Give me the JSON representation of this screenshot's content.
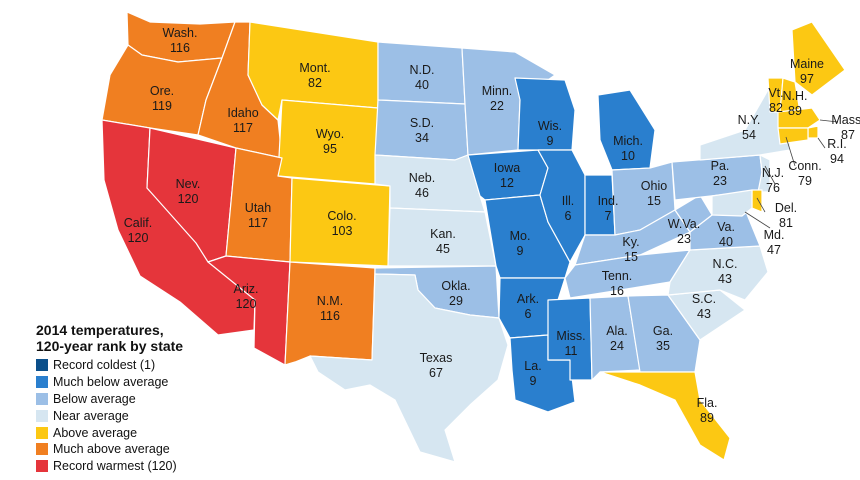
{
  "legend": {
    "title_line1": "2014 temperatures,",
    "title_line2": "120-year rank by state",
    "categories": [
      {
        "label": "Record coldest (1)",
        "color": "#0b4f8a"
      },
      {
        "label": "Much below average",
        "color": "#2a7fce"
      },
      {
        "label": "Below average",
        "color": "#9cbfe6"
      },
      {
        "label": "Near average",
        "color": "#d6e6f1"
      },
      {
        "label": "Above average",
        "color": "#fcc813"
      },
      {
        "label": "Much above average",
        "color": "#f07f21"
      },
      {
        "label": "Record warmest (120)",
        "color": "#e5353b"
      }
    ]
  },
  "states": [
    {
      "abbr": "Wash.",
      "rank": "116",
      "category": 5
    },
    {
      "abbr": "Ore.",
      "rank": "119",
      "category": 5
    },
    {
      "abbr": "Calif.",
      "rank": "120",
      "category": 6
    },
    {
      "abbr": "Nev.",
      "rank": "120",
      "category": 6
    },
    {
      "abbr": "Idaho",
      "rank": "117",
      "category": 5
    },
    {
      "abbr": "Mont.",
      "rank": "82",
      "category": 4
    },
    {
      "abbr": "Wyo.",
      "rank": "95",
      "category": 4
    },
    {
      "abbr": "Utah",
      "rank": "117",
      "category": 5
    },
    {
      "abbr": "Ariz.",
      "rank": "120",
      "category": 6
    },
    {
      "abbr": "Colo.",
      "rank": "103",
      "category": 4
    },
    {
      "abbr": "N.M.",
      "rank": "116",
      "category": 5
    },
    {
      "abbr": "N.D.",
      "rank": "40",
      "category": 2
    },
    {
      "abbr": "S.D.",
      "rank": "34",
      "category": 2
    },
    {
      "abbr": "Neb.",
      "rank": "46",
      "category": 3
    },
    {
      "abbr": "Kan.",
      "rank": "45",
      "category": 3
    },
    {
      "abbr": "Okla.",
      "rank": "29",
      "category": 2
    },
    {
      "abbr": "Texas",
      "rank": "67",
      "category": 3
    },
    {
      "abbr": "Minn.",
      "rank": "22",
      "category": 2
    },
    {
      "abbr": "Iowa",
      "rank": "12",
      "category": 1
    },
    {
      "abbr": "Mo.",
      "rank": "9",
      "category": 1
    },
    {
      "abbr": "Ark.",
      "rank": "6",
      "category": 1
    },
    {
      "abbr": "La.",
      "rank": "9",
      "category": 1
    },
    {
      "abbr": "Wis.",
      "rank": "9",
      "category": 1
    },
    {
      "abbr": "Ill.",
      "rank": "6",
      "category": 1
    },
    {
      "abbr": "Mich.",
      "rank": "10",
      "category": 1
    },
    {
      "abbr": "Ind.",
      "rank": "7",
      "category": 1
    },
    {
      "abbr": "Ohio",
      "rank": "15",
      "category": 2
    },
    {
      "abbr": "Ky.",
      "rank": "15",
      "category": 2
    },
    {
      "abbr": "Tenn.",
      "rank": "16",
      "category": 2
    },
    {
      "abbr": "Miss.",
      "rank": "11",
      "category": 1
    },
    {
      "abbr": "Ala.",
      "rank": "24",
      "category": 2
    },
    {
      "abbr": "Ga.",
      "rank": "35",
      "category": 2
    },
    {
      "abbr": "Fla.",
      "rank": "89",
      "category": 4
    },
    {
      "abbr": "S.C.",
      "rank": "43",
      "category": 3
    },
    {
      "abbr": "N.C.",
      "rank": "43",
      "category": 3
    },
    {
      "abbr": "Va.",
      "rank": "40",
      "category": 2
    },
    {
      "abbr": "W.Va.",
      "rank": "23",
      "category": 2
    },
    {
      "abbr": "Pa.",
      "rank": "23",
      "category": 2
    },
    {
      "abbr": "N.Y.",
      "rank": "54",
      "category": 3
    },
    {
      "abbr": "Maine",
      "rank": "97",
      "category": 4
    },
    {
      "abbr": "Vt.",
      "rank": "82",
      "category": 4
    },
    {
      "abbr": "N.H.",
      "rank": "89",
      "category": 4
    },
    {
      "abbr": "Mass.",
      "rank": "87",
      "category": 4
    },
    {
      "abbr": "R.I.",
      "rank": "94",
      "category": 4
    },
    {
      "abbr": "Conn.",
      "rank": "79",
      "category": 4
    },
    {
      "abbr": "N.J.",
      "rank": "76",
      "category": 3
    },
    {
      "abbr": "Del.",
      "rank": "81",
      "category": 4
    },
    {
      "abbr": "Md.",
      "rank": "47",
      "category": 3
    }
  ]
}
